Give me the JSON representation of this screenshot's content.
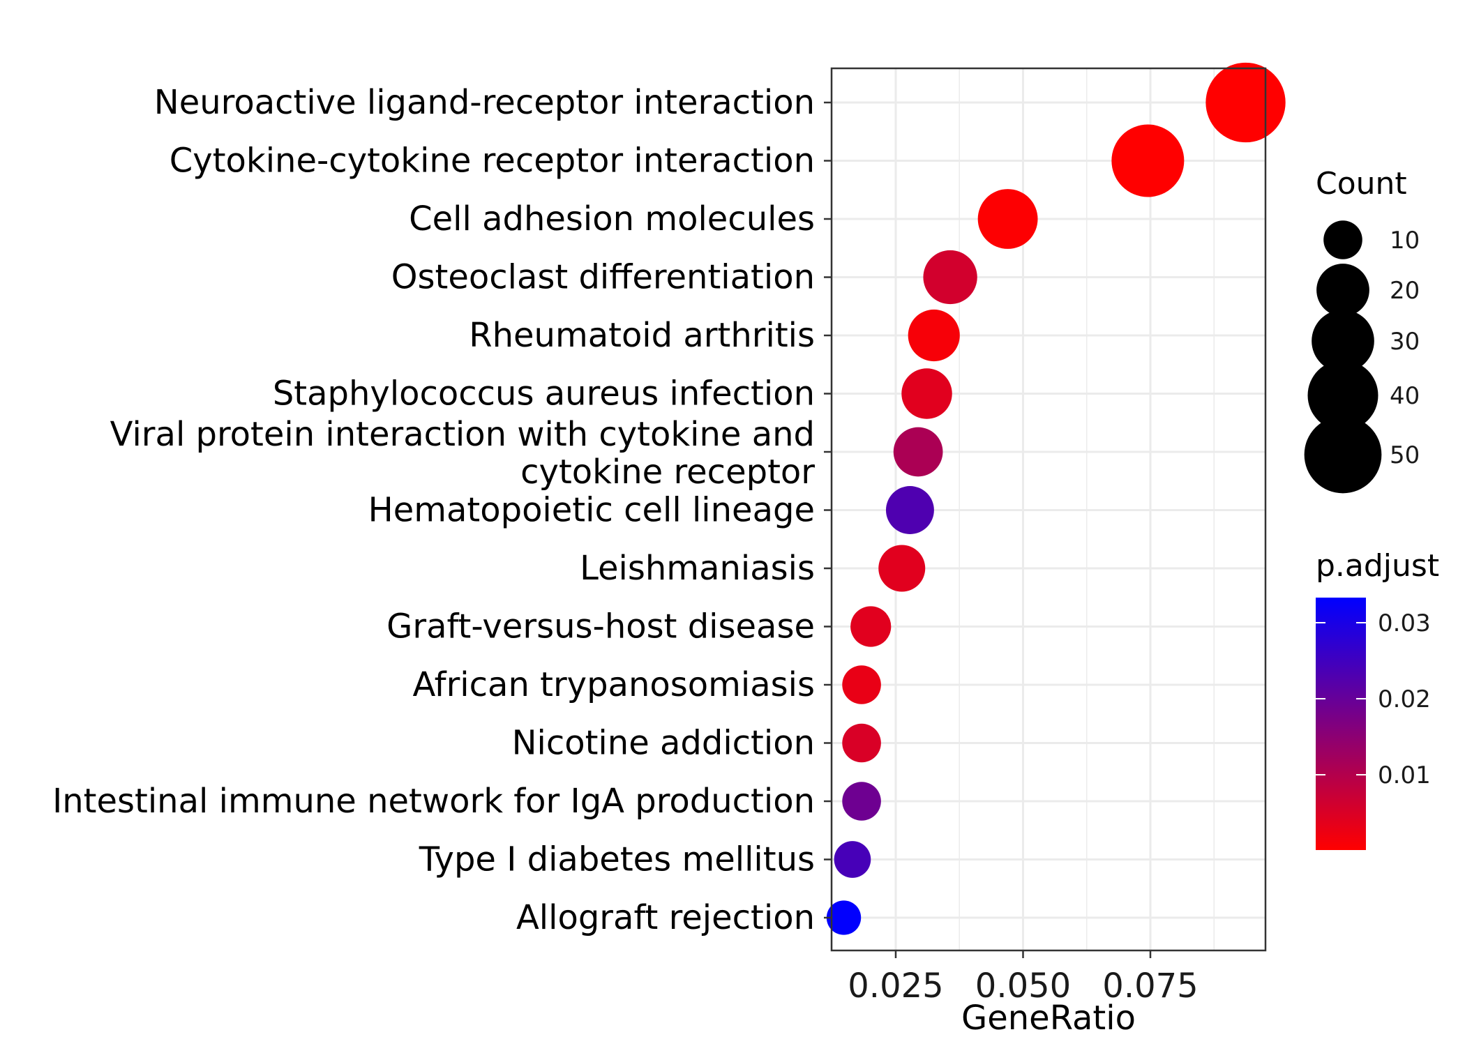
{
  "chart_data": {
    "type": "scatter",
    "xlabel": "GeneRatio",
    "xlim": [
      0.0124,
      0.0976
    ],
    "x_ticks": [
      {
        "value": 0.025,
        "label": "0.025"
      },
      {
        "value": 0.05,
        "label": "0.050"
      },
      {
        "value": 0.075,
        "label": "0.075"
      }
    ],
    "categories": [
      {
        "label": [
          "Neuroactive ligand-receptor interaction"
        ],
        "x": 0.0937,
        "count": 54,
        "p_adjust": 0.0001
      },
      {
        "label": [
          "Cytokine-cytokine receptor interaction"
        ],
        "x": 0.0745,
        "count": 43,
        "p_adjust": 0.0001
      },
      {
        "label": [
          "Cell adhesion molecules"
        ],
        "x": 0.047,
        "count": 27,
        "p_adjust": 0.0003
      },
      {
        "label": [
          "Osteoclast differentiation"
        ],
        "x": 0.0357,
        "count": 21,
        "p_adjust": 0.006
      },
      {
        "label": [
          "Rheumatoid arthritis"
        ],
        "x": 0.0325,
        "count": 19,
        "p_adjust": 0.0012
      },
      {
        "label": [
          "Staphylococcus aureus infection"
        ],
        "x": 0.0311,
        "count": 18,
        "p_adjust": 0.004
      },
      {
        "label": [
          "Viral protein interaction with cytokine and",
          "cytokine receptor"
        ],
        "x": 0.0294,
        "count": 17,
        "p_adjust": 0.011
      },
      {
        "label": [
          "Hematopoietic cell lineage"
        ],
        "x": 0.0278,
        "count": 16,
        "p_adjust": 0.023
      },
      {
        "label": [
          "Leishmaniasis"
        ],
        "x": 0.0262,
        "count": 15,
        "p_adjust": 0.004
      },
      {
        "label": [
          "Graft-versus-host disease"
        ],
        "x": 0.0201,
        "count": 11,
        "p_adjust": 0.004
      },
      {
        "label": [
          "African trypanosomiasis"
        ],
        "x": 0.0183,
        "count": 10,
        "p_adjust": 0.003
      },
      {
        "label": [
          "Nicotine addiction"
        ],
        "x": 0.0183,
        "count": 10,
        "p_adjust": 0.005
      },
      {
        "label": [
          "Intestinal immune network for IgA production"
        ],
        "x": 0.0183,
        "count": 10,
        "p_adjust": 0.019
      },
      {
        "label": [
          "Type I diabetes mellitus"
        ],
        "x": 0.0165,
        "count": 9,
        "p_adjust": 0.024
      },
      {
        "label": [
          "Allograft rejection"
        ],
        "x": 0.0148,
        "count": 8,
        "p_adjust": 0.033
      }
    ],
    "legend_size": {
      "title": "Count",
      "entries": [
        {
          "value": 10,
          "label": "10"
        },
        {
          "value": 20,
          "label": "20"
        },
        {
          "value": 30,
          "label": "30"
        },
        {
          "value": 40,
          "label": "40"
        },
        {
          "value": 50,
          "label": "50"
        }
      ]
    },
    "legend_color": {
      "title": "p.adjust",
      "range": [
        0.0001,
        0.0333
      ],
      "low_color": "#ff0000",
      "high_color": "#0000ff",
      "ticks": [
        {
          "value": 0.03,
          "label": "0.03"
        },
        {
          "value": 0.02,
          "label": "0.02"
        },
        {
          "value": 0.01,
          "label": "0.01"
        }
      ]
    },
    "grid": true,
    "legend_position": "right"
  }
}
